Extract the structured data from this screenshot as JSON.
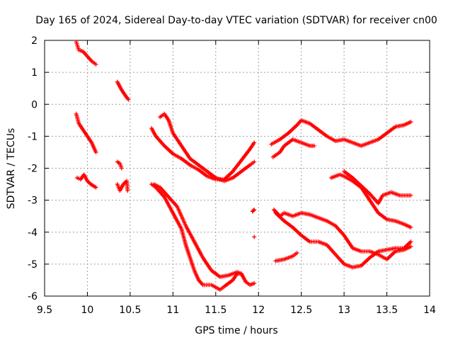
{
  "chart_data": {
    "type": "scatter",
    "title": "Day 165 of 2024, Sidereal Day-to-day VTEC variation (SDTVAR) for receiver cn00",
    "xlabel": "GPS time / hours",
    "ylabel": "SDTVAR / TECUs",
    "xlim": [
      9.5,
      14
    ],
    "ylim": [
      -6,
      2
    ],
    "xticks": [
      9.5,
      10,
      10.5,
      11,
      11.5,
      12,
      12.5,
      13,
      13.5,
      14
    ],
    "xtick_labels": [
      "9.5",
      "10",
      "10.5",
      "11",
      "11.5",
      "12",
      "12.5",
      "13",
      "13.5",
      "14"
    ],
    "yticks": [
      -6,
      -5,
      -4,
      -3,
      -2,
      -1,
      0,
      1,
      2
    ],
    "ytick_labels": [
      "-6",
      "-5",
      "-4",
      "-3",
      "-2",
      "-1",
      "0",
      "1",
      "2"
    ],
    "grid": true,
    "marker": "+",
    "color": "#ff0000",
    "series": [
      {
        "name": "s1",
        "points": [
          [
            9.87,
            1.95
          ],
          [
            9.9,
            1.7
          ],
          [
            9.95,
            1.65
          ],
          [
            10.0,
            1.5
          ],
          [
            10.05,
            1.35
          ],
          [
            10.1,
            1.25
          ]
        ]
      },
      {
        "name": "s2",
        "points": [
          [
            9.87,
            -0.3
          ],
          [
            9.9,
            -0.6
          ],
          [
            9.95,
            -0.8
          ],
          [
            10.0,
            -1.0
          ],
          [
            10.05,
            -1.2
          ],
          [
            10.1,
            -1.5
          ]
        ]
      },
      {
        "name": "s3",
        "points": [
          [
            9.88,
            -2.3
          ],
          [
            9.92,
            -2.35
          ],
          [
            9.96,
            -2.2
          ],
          [
            10.0,
            -2.4
          ],
          [
            10.04,
            -2.5
          ],
          [
            10.1,
            -2.6
          ]
        ]
      },
      {
        "name": "s4",
        "points": [
          [
            10.35,
            0.7
          ],
          [
            10.4,
            0.45
          ],
          [
            10.45,
            0.25
          ],
          [
            10.48,
            0.15
          ]
        ]
      },
      {
        "name": "s5",
        "points": [
          [
            10.35,
            -1.8
          ],
          [
            10.38,
            -1.85
          ],
          [
            10.4,
            -2.0
          ]
        ]
      },
      {
        "name": "s6",
        "points": [
          [
            10.35,
            -2.5
          ],
          [
            10.38,
            -2.7
          ],
          [
            10.42,
            -2.5
          ],
          [
            10.46,
            -2.4
          ],
          [
            10.47,
            -2.7
          ]
        ]
      },
      {
        "name": "s7",
        "points": [
          [
            10.85,
            -0.4
          ],
          [
            10.9,
            -0.3
          ],
          [
            10.95,
            -0.5
          ],
          [
            11.0,
            -0.9
          ],
          [
            11.1,
            -1.3
          ],
          [
            11.2,
            -1.7
          ],
          [
            11.3,
            -1.9
          ],
          [
            11.4,
            -2.1
          ],
          [
            11.5,
            -2.3
          ],
          [
            11.6,
            -2.4
          ],
          [
            11.7,
            -2.3
          ],
          [
            11.8,
            -2.1
          ],
          [
            11.9,
            -1.9
          ],
          [
            11.95,
            -1.8
          ]
        ]
      },
      {
        "name": "s8",
        "points": [
          [
            10.75,
            -0.75
          ],
          [
            10.8,
            -1.0
          ],
          [
            10.9,
            -1.3
          ],
          [
            11.0,
            -1.55
          ],
          [
            11.1,
            -1.7
          ],
          [
            11.2,
            -1.9
          ],
          [
            11.3,
            -2.05
          ],
          [
            11.4,
            -2.25
          ],
          [
            11.5,
            -2.35
          ],
          [
            11.6,
            -2.35
          ],
          [
            11.7,
            -2.1
          ],
          [
            11.8,
            -1.75
          ],
          [
            11.9,
            -1.4
          ],
          [
            11.95,
            -1.2
          ]
        ]
      },
      {
        "name": "s9",
        "points": [
          [
            10.75,
            -2.5
          ],
          [
            10.8,
            -2.6
          ],
          [
            10.9,
            -2.9
          ],
          [
            11.0,
            -3.4
          ],
          [
            11.1,
            -3.9
          ],
          [
            11.15,
            -4.4
          ],
          [
            11.2,
            -4.8
          ],
          [
            11.25,
            -5.2
          ],
          [
            11.3,
            -5.5
          ],
          [
            11.35,
            -5.65
          ],
          [
            11.45,
            -5.65
          ],
          [
            11.55,
            -5.8
          ],
          [
            11.6,
            -5.7
          ],
          [
            11.7,
            -5.5
          ],
          [
            11.75,
            -5.3
          ],
          [
            11.8,
            -5.3
          ],
          [
            11.85,
            -5.55
          ],
          [
            11.9,
            -5.65
          ],
          [
            11.95,
            -5.6
          ]
        ]
      },
      {
        "name": "s10",
        "points": [
          [
            10.78,
            -2.5
          ],
          [
            10.85,
            -2.6
          ],
          [
            10.95,
            -2.9
          ],
          [
            11.05,
            -3.2
          ],
          [
            11.15,
            -3.8
          ],
          [
            11.25,
            -4.3
          ],
          [
            11.35,
            -4.8
          ],
          [
            11.45,
            -5.2
          ],
          [
            11.55,
            -5.4
          ],
          [
            11.65,
            -5.35
          ],
          [
            11.75,
            -5.25
          ],
          [
            11.8,
            -5.3
          ]
        ]
      },
      {
        "name": "s11",
        "points": [
          [
            11.93,
            -3.35
          ],
          [
            11.95,
            -3.3
          ]
        ]
      },
      {
        "name": "s12",
        "points": [
          [
            11.95,
            -4.15
          ]
        ]
      },
      {
        "name": "s13",
        "points": [
          [
            12.15,
            -1.25
          ],
          [
            12.25,
            -1.1
          ],
          [
            12.35,
            -0.9
          ],
          [
            12.45,
            -0.65
          ],
          [
            12.5,
            -0.5
          ],
          [
            12.6,
            -0.6
          ],
          [
            12.7,
            -0.8
          ],
          [
            12.8,
            -1.0
          ],
          [
            12.9,
            -1.15
          ],
          [
            13.0,
            -1.1
          ],
          [
            13.1,
            -1.2
          ],
          [
            13.2,
            -1.3
          ],
          [
            13.3,
            -1.2
          ],
          [
            13.4,
            -1.1
          ],
          [
            13.5,
            -0.9
          ],
          [
            13.6,
            -0.7
          ],
          [
            13.7,
            -0.65
          ],
          [
            13.78,
            -0.55
          ]
        ]
      },
      {
        "name": "s14",
        "points": [
          [
            12.17,
            -1.65
          ],
          [
            12.25,
            -1.5
          ],
          [
            12.3,
            -1.3
          ],
          [
            12.4,
            -1.1
          ],
          [
            12.5,
            -1.2
          ],
          [
            12.6,
            -1.3
          ],
          [
            12.65,
            -1.3
          ]
        ]
      },
      {
        "name": "s15",
        "points": [
          [
            12.2,
            -3.4
          ],
          [
            12.3,
            -3.65
          ],
          [
            12.4,
            -3.85
          ],
          [
            12.5,
            -4.1
          ],
          [
            12.6,
            -4.3
          ],
          [
            12.7,
            -4.3
          ],
          [
            12.8,
            -4.4
          ],
          [
            12.9,
            -4.7
          ],
          [
            13.0,
            -5.0
          ],
          [
            13.1,
            -5.1
          ],
          [
            13.2,
            -5.05
          ],
          [
            13.3,
            -4.8
          ],
          [
            13.4,
            -4.6
          ],
          [
            13.5,
            -4.55
          ],
          [
            13.6,
            -4.5
          ],
          [
            13.7,
            -4.5
          ],
          [
            13.78,
            -4.3
          ]
        ]
      },
      {
        "name": "s16",
        "points": [
          [
            12.18,
            -3.3
          ],
          [
            12.25,
            -3.5
          ],
          [
            12.3,
            -3.4
          ],
          [
            12.4,
            -3.5
          ],
          [
            12.5,
            -3.4
          ],
          [
            12.6,
            -3.45
          ],
          [
            12.7,
            -3.55
          ],
          [
            12.8,
            -3.65
          ],
          [
            12.9,
            -3.8
          ],
          [
            13.0,
            -4.1
          ],
          [
            13.1,
            -4.5
          ],
          [
            13.2,
            -4.6
          ],
          [
            13.3,
            -4.6
          ],
          [
            13.4,
            -4.7
          ],
          [
            13.5,
            -4.85
          ],
          [
            13.6,
            -4.6
          ],
          [
            13.7,
            -4.55
          ],
          [
            13.78,
            -4.45
          ]
        ]
      },
      {
        "name": "s17",
        "points": [
          [
            12.2,
            -4.9
          ],
          [
            12.3,
            -4.85
          ],
          [
            12.4,
            -4.75
          ],
          [
            12.45,
            -4.65
          ]
        ]
      },
      {
        "name": "s18",
        "points": [
          [
            12.85,
            -2.3
          ],
          [
            12.95,
            -2.2
          ],
          [
            13.0,
            -2.25
          ],
          [
            13.1,
            -2.4
          ],
          [
            13.2,
            -2.6
          ],
          [
            13.3,
            -3.0
          ],
          [
            13.4,
            -3.4
          ],
          [
            13.5,
            -3.6
          ],
          [
            13.6,
            -3.65
          ],
          [
            13.7,
            -3.75
          ],
          [
            13.78,
            -3.85
          ]
        ]
      },
      {
        "name": "s19",
        "points": [
          [
            13.0,
            -2.1
          ],
          [
            13.1,
            -2.3
          ],
          [
            13.2,
            -2.55
          ],
          [
            13.3,
            -2.8
          ],
          [
            13.4,
            -3.1
          ],
          [
            13.45,
            -2.85
          ],
          [
            13.55,
            -2.75
          ],
          [
            13.65,
            -2.85
          ],
          [
            13.78,
            -2.85
          ]
        ]
      }
    ]
  }
}
